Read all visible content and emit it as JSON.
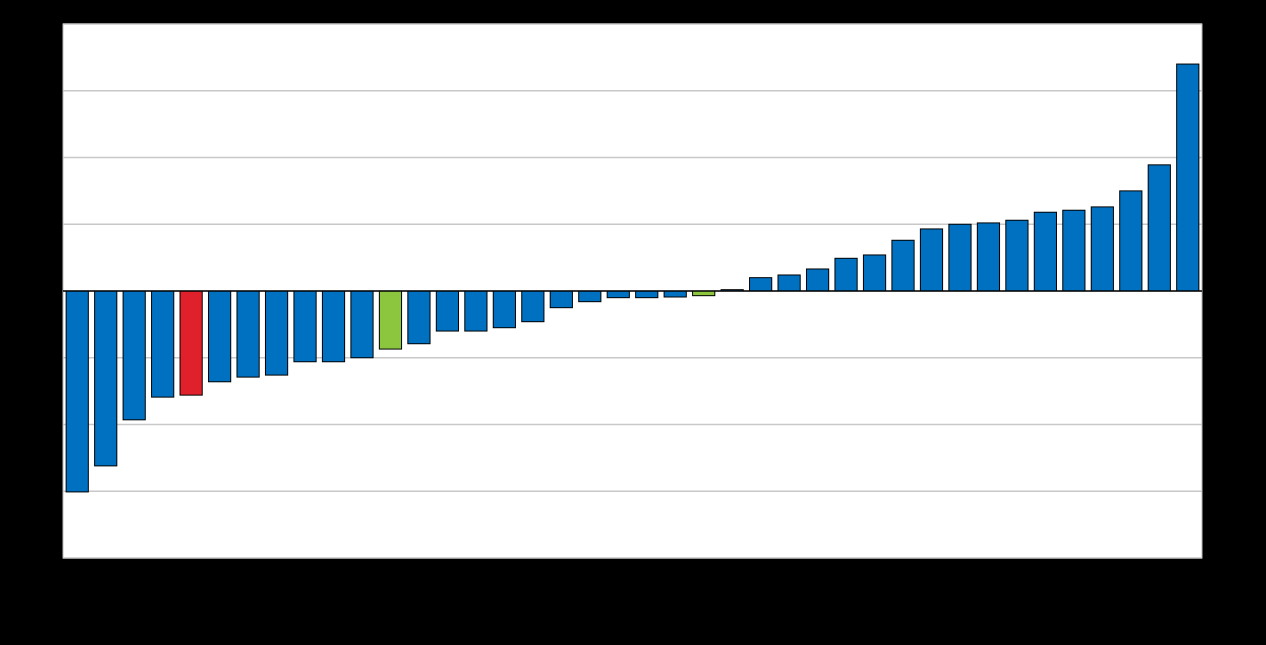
{
  "chart_data": {
    "type": "bar",
    "categories": [
      null,
      null,
      null,
      null,
      null,
      null,
      null,
      null,
      null,
      null,
      null,
      null,
      null,
      null,
      null,
      null,
      null,
      null,
      null,
      null,
      null,
      null,
      null,
      null,
      null,
      null,
      null,
      null,
      null,
      null,
      null,
      null,
      null,
      null,
      null,
      null,
      null,
      null,
      null,
      null
    ],
    "values": [
      -3.01,
      -2.62,
      -1.93,
      -1.59,
      -1.56,
      -1.36,
      -1.29,
      -1.26,
      -1.06,
      -1.06,
      -1.0,
      -0.87,
      -0.79,
      -0.6,
      -0.6,
      -0.55,
      -0.46,
      -0.25,
      -0.16,
      -0.1,
      -0.1,
      -0.09,
      -0.07,
      0.02,
      0.2,
      0.24,
      0.33,
      0.49,
      0.54,
      0.76,
      0.93,
      1.0,
      1.02,
      1.06,
      1.18,
      1.21,
      1.26,
      1.5,
      1.89,
      3.4
    ],
    "colors": [
      "#0070c0",
      "#0070c0",
      "#0070c0",
      "#0070c0",
      "#e0202b",
      "#0070c0",
      "#0070c0",
      "#0070c0",
      "#0070c0",
      "#0070c0",
      "#0070c0",
      "#8cc63f",
      "#0070c0",
      "#0070c0",
      "#0070c0",
      "#0070c0",
      "#0070c0",
      "#0070c0",
      "#0070c0",
      "#0070c0",
      "#0070c0",
      "#0070c0",
      "#8cc63f",
      "#0070c0",
      "#0070c0",
      "#0070c0",
      "#0070c0",
      "#0070c0",
      "#0070c0",
      "#0070c0",
      "#0070c0",
      "#0070c0",
      "#0070c0",
      "#0070c0",
      "#0070c0",
      "#0070c0",
      "#0070c0",
      "#0070c0",
      "#0070c0",
      "#0070c0"
    ],
    "ylim": [
      -4,
      4
    ],
    "yticks": [
      -4,
      -3,
      -2,
      -1,
      0,
      1,
      2,
      3,
      4
    ],
    "grid": true
  }
}
